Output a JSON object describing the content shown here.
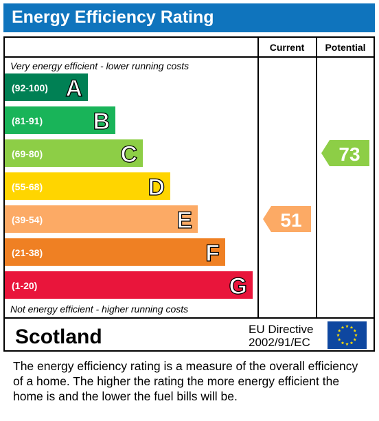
{
  "title": "Energy Efficiency Rating",
  "columns": {
    "current": "Current",
    "potential": "Potential"
  },
  "top_note": "Very energy efficient - lower running costs",
  "bottom_note": "Not energy efficient - higher running costs",
  "region": "Scotland",
  "directive": {
    "line1": "EU Directive",
    "line2": "2002/91/EC"
  },
  "flag_icon": "eu-flag-icon",
  "description": "The energy efficiency rating is a measure of the overall efficiency of a home.  The higher the rating the more energy efficient the home is and the lower the fuel bills will be.",
  "chart_data": {
    "type": "bar",
    "categories": [
      "A",
      "B",
      "C",
      "D",
      "E",
      "F",
      "G"
    ],
    "ranges": [
      "(92-100)",
      "(81-91)",
      "(69-80)",
      "(55-68)",
      "(39-54)",
      "(21-38)",
      "(1-20)"
    ],
    "colors": [
      "#008054",
      "#19b459",
      "#8dce46",
      "#ffd500",
      "#fcaa65",
      "#ef8023",
      "#e9153b"
    ],
    "current": {
      "value": 51,
      "band": "E",
      "color": "#fcaa65"
    },
    "potential": {
      "value": 73,
      "band": "C",
      "color": "#8dce46"
    }
  }
}
